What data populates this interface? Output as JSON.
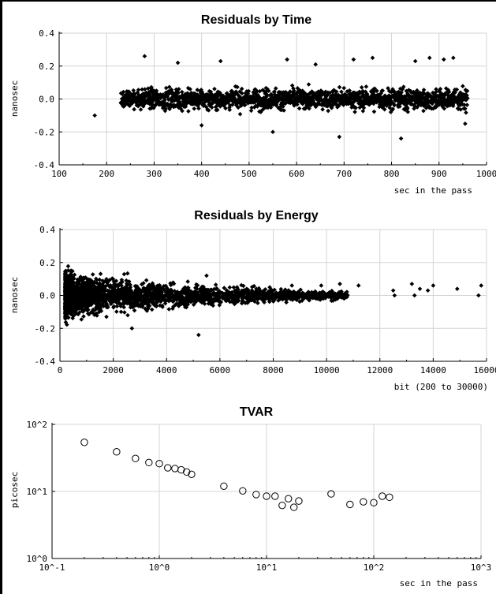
{
  "chart_data": [
    {
      "type": "scatter",
      "title": "Residuals by Time",
      "ylabel": "nanosec",
      "xlabel": "sec in the pass",
      "xlim": [
        100,
        1000
      ],
      "ylim": [
        -0.4,
        0.4
      ],
      "xticks": [
        "100",
        "200",
        "300",
        "400",
        "500",
        "600",
        "700",
        "800",
        "900",
        "1000"
      ],
      "yticks": [
        "-0.4",
        "-0.2",
        "0.0",
        "0.2",
        "0.4"
      ],
      "marker": "filled-diamond",
      "grid": true,
      "band": {
        "x_range": [
          230,
          960
        ],
        "typical_spread": 0.1,
        "max_spread": 0.26
      },
      "points": [
        {
          "x": 175,
          "y": -0.1
        },
        {
          "x": 280,
          "y": 0.26
        },
        {
          "x": 350,
          "y": 0.22
        },
        {
          "x": 400,
          "y": -0.16
        },
        {
          "x": 440,
          "y": 0.23
        },
        {
          "x": 550,
          "y": -0.2
        },
        {
          "x": 580,
          "y": 0.24
        },
        {
          "x": 640,
          "y": 0.21
        },
        {
          "x": 690,
          "y": -0.23
        },
        {
          "x": 720,
          "y": 0.24
        },
        {
          "x": 760,
          "y": 0.25
        },
        {
          "x": 820,
          "y": -0.24
        },
        {
          "x": 850,
          "y": 0.23
        },
        {
          "x": 880,
          "y": 0.25
        },
        {
          "x": 910,
          "y": 0.24
        },
        {
          "x": 930,
          "y": 0.25
        },
        {
          "x": 955,
          "y": -0.15
        }
      ]
    },
    {
      "type": "scatter",
      "title": "Residuals by Energy",
      "ylabel": "nanosec",
      "xlabel": "bit (200 to 30000)",
      "xlim": [
        0,
        16000
      ],
      "ylim": [
        -0.4,
        0.4
      ],
      "xticks": [
        "0",
        "2000",
        "4000",
        "6000",
        "8000",
        "10000",
        "12000",
        "14000",
        "16000"
      ],
      "yticks": [
        "-0.4",
        "-0.2",
        "0.0",
        "0.2",
        "0.4"
      ],
      "marker": "filled-diamond",
      "grid": true,
      "band": {
        "x_range": [
          200,
          10800
        ],
        "spread_at_start": 0.26,
        "spread_at_end": 0.04
      },
      "points": [
        {
          "x": 2700,
          "y": -0.2
        },
        {
          "x": 5200,
          "y": -0.24
        },
        {
          "x": 5500,
          "y": 0.12
        },
        {
          "x": 8700,
          "y": 0.06
        },
        {
          "x": 9800,
          "y": 0.06
        },
        {
          "x": 10500,
          "y": 0.07
        },
        {
          "x": 11200,
          "y": 0.06
        },
        {
          "x": 12500,
          "y": 0.03
        },
        {
          "x": 12550,
          "y": 0.0
        },
        {
          "x": 13200,
          "y": 0.07
        },
        {
          "x": 13300,
          "y": 0.0
        },
        {
          "x": 13500,
          "y": 0.04
        },
        {
          "x": 13800,
          "y": 0.03
        },
        {
          "x": 14000,
          "y": 0.06
        },
        {
          "x": 14900,
          "y": 0.04
        },
        {
          "x": 15700,
          "y": 0.0
        },
        {
          "x": 15800,
          "y": 0.06
        }
      ]
    },
    {
      "type": "scatter",
      "title": "TVAR",
      "ylabel": "picosec",
      "xlabel": "sec in the pass",
      "xscale": "log",
      "yscale": "log",
      "xlim": [
        0.1,
        1000
      ],
      "ylim": [
        1,
        100
      ],
      "xticks": [
        "10^-1",
        "10^0",
        "10^1",
        "10^2",
        "10^3"
      ],
      "yticks": [
        "10^0",
        "10^1",
        "10^2"
      ],
      "marker": "open-circle",
      "grid": true,
      "points": [
        {
          "x": 0.2,
          "y": 54
        },
        {
          "x": 0.4,
          "y": 39
        },
        {
          "x": 0.6,
          "y": 31
        },
        {
          "x": 0.8,
          "y": 27
        },
        {
          "x": 1.0,
          "y": 26
        },
        {
          "x": 1.2,
          "y": 22.5
        },
        {
          "x": 1.4,
          "y": 22
        },
        {
          "x": 1.6,
          "y": 21
        },
        {
          "x": 1.8,
          "y": 19.5
        },
        {
          "x": 2.0,
          "y": 18
        },
        {
          "x": 4.0,
          "y": 12
        },
        {
          "x": 6.0,
          "y": 10.2
        },
        {
          "x": 8.0,
          "y": 9
        },
        {
          "x": 10,
          "y": 8.5
        },
        {
          "x": 12,
          "y": 8.5
        },
        {
          "x": 14,
          "y": 6.2
        },
        {
          "x": 16,
          "y": 7.8
        },
        {
          "x": 18,
          "y": 5.8
        },
        {
          "x": 20,
          "y": 7.2
        },
        {
          "x": 40,
          "y": 9.2
        },
        {
          "x": 60,
          "y": 6.4
        },
        {
          "x": 80,
          "y": 7
        },
        {
          "x": 100,
          "y": 6.8
        },
        {
          "x": 120,
          "y": 8.5
        },
        {
          "x": 140,
          "y": 8.2
        }
      ]
    }
  ]
}
